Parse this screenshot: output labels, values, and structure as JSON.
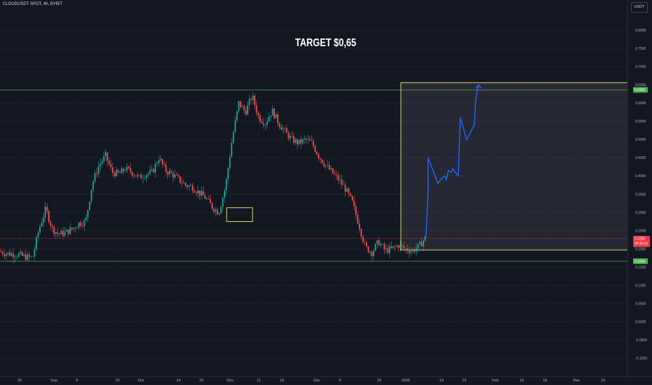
{
  "header": {
    "symbol": "CLOUDUSDT SPOT, 4h, BYBIT",
    "currency_button": "USDT"
  },
  "annotation": {
    "target_text": "TARGET $0,65"
  },
  "colors": {
    "background": "#131722",
    "up": "#26a69a",
    "down": "#ef5350",
    "level_line": "#4caf50",
    "box_outline": "#e3d86a",
    "projection": "#2962ff",
    "current_price": "#f23645"
  },
  "chart_data": {
    "type": "line",
    "ylim": [
      -0.12,
      0.85
    ],
    "y_ticks": [
      0.8,
      0.75,
      0.7,
      0.65,
      0.6,
      0.55,
      0.5,
      0.45,
      0.4,
      0.35,
      0.3,
      0.25,
      0.2,
      0.15,
      0.1,
      0.05,
      0.0,
      -0.05,
      -0.1
    ],
    "y_tick_labels": [
      "0.8000",
      "0.7500",
      "0.7000",
      "0.6500",
      "0.6000",
      "0.5500",
      "0.5000",
      "0.4500",
      "0.4000",
      "0.3500",
      "0.3000",
      "0.2500",
      "0.2000",
      "0.1500",
      "0.1000",
      "0.0500",
      "0.0000",
      "-0.0500",
      "-0.1000"
    ],
    "x_tick_labels": [
      "20",
      "Sep",
      "9",
      "23",
      "Oct",
      "14",
      "22",
      "Nov",
      "11",
      "19",
      "Dec",
      "9",
      "23",
      "2025",
      "13",
      "21",
      "Feb",
      "10",
      "18",
      "Mar",
      "10"
    ],
    "price_series": {
      "name": "CLOUDUSDT",
      "values": [
        0.193,
        0.188,
        0.186,
        0.183,
        0.178,
        0.175,
        0.255,
        0.31,
        0.255,
        0.24,
        0.245,
        0.255,
        0.27,
        0.275,
        0.38,
        0.43,
        0.455,
        0.41,
        0.405,
        0.42,
        0.41,
        0.395,
        0.405,
        0.41,
        0.45,
        0.415,
        0.405,
        0.39,
        0.375,
        0.37,
        0.355,
        0.34,
        0.315,
        0.3,
        0.37,
        0.5,
        0.6,
        0.575,
        0.62,
        0.56,
        0.545,
        0.58,
        0.545,
        0.52,
        0.5,
        0.49,
        0.5,
        0.49,
        0.455,
        0.43,
        0.41,
        0.39,
        0.365,
        0.33,
        0.27,
        0.205,
        0.19,
        0.22,
        0.195,
        0.2,
        0.21,
        0.2,
        0.195,
        0.205,
        0.23
      ]
    },
    "projection_path": {
      "name": "projection",
      "values": [
        0.235,
        0.36,
        0.45,
        0.38,
        0.39,
        0.4,
        0.39,
        0.415,
        0.41,
        0.42,
        0.4,
        0.56,
        0.5,
        0.54,
        0.61,
        0.65
      ]
    },
    "levels": [
      {
        "label": "0.6362",
        "value": 0.6362
      },
      {
        "label": "0.1664",
        "value": 0.1664
      }
    ],
    "current_price": {
      "label": "0.2283",
      "countdown": "00:40:42",
      "value": 0.2283
    },
    "target_box": {
      "top": 0.656,
      "bottom": 0.197
    },
    "highlight_box": {
      "top": 0.313,
      "bottom": 0.275
    }
  }
}
